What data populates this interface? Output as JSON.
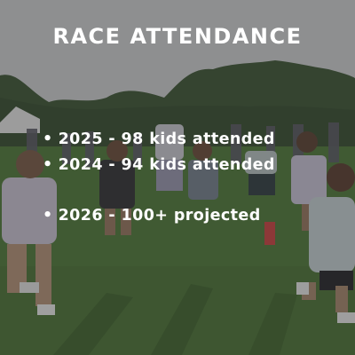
{
  "title": "RACE ATTENDANCE",
  "bullet_glyph": "•",
  "bullets": [
    "2025 - 98 kids attended",
    "2024 - 94 kids attended",
    "2026 - 100+ projected"
  ],
  "colors": {
    "text": "#ffffff",
    "overlay": "#2d2d2d",
    "sky": "#d6d8da",
    "trees": "#3f5a36",
    "grass": "#4f7a38"
  }
}
